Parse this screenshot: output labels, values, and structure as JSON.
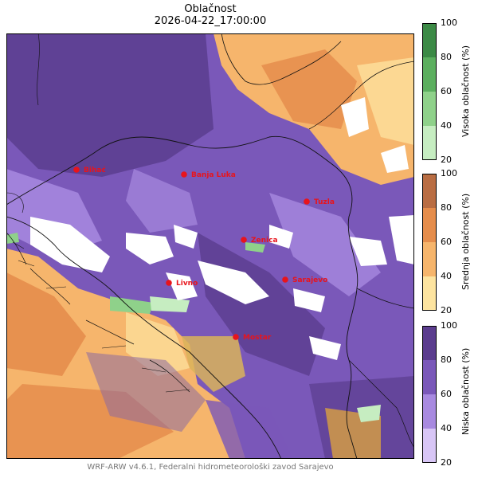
{
  "title": "Oblačnost",
  "datetime": "2026-04-22_17:00:00",
  "footer": "WRF-ARW v4.6.1, Federalni hidrometeorološki zavod Sarajevo",
  "cities": [
    {
      "name": "Bihać"
    },
    {
      "name": "Banja Luka"
    },
    {
      "name": "Tuzla"
    },
    {
      "name": "Zenica"
    },
    {
      "name": "Livno"
    },
    {
      "name": "Sarajevo"
    },
    {
      "name": "Mostar"
    }
  ],
  "colorbars": [
    {
      "label": "Visoka oblačnost (%)",
      "ticks": [
        "100",
        "80",
        "60",
        "40",
        "20"
      ],
      "colors": [
        "#3c8a46",
        "#5caf5f",
        "#8fd18a",
        "#c6edc1"
      ]
    },
    {
      "label": "Srednja oblačnost (%)",
      "ticks": [
        "100",
        "80",
        "60",
        "40",
        "20"
      ],
      "colors": [
        "#b96d43",
        "#e58d4c",
        "#f6b56c",
        "#fde4a0"
      ]
    },
    {
      "label": "Niska oblačnost (%)",
      "ticks": [
        "100",
        "80",
        "60",
        "40",
        "20"
      ],
      "colors": [
        "#5b3d8e",
        "#7a58b9",
        "#a88ae0",
        "#d8c6f6"
      ]
    }
  ],
  "colors": {
    "city_marker": "#e8141c",
    "city_label": "#e8141c"
  }
}
